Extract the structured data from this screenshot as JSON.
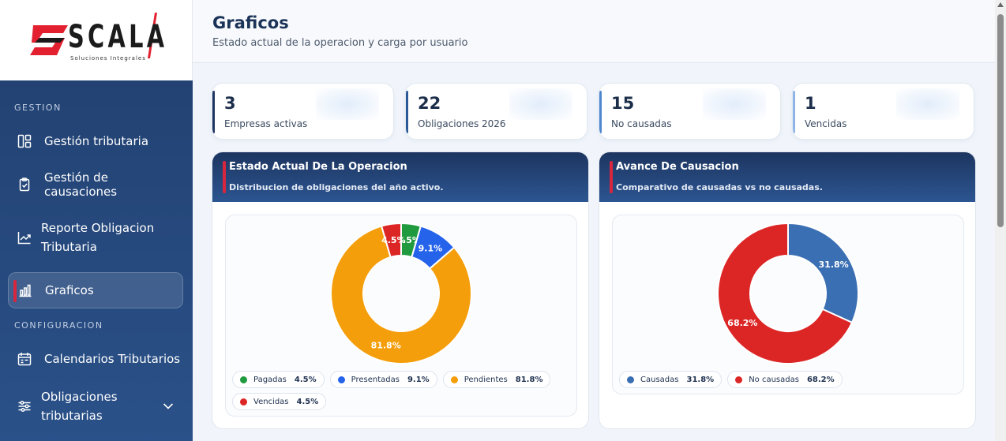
{
  "app": {
    "logo_text": "SCALA",
    "logo_sub": "Soluciones Integrales"
  },
  "sidebar": {
    "sections": [
      {
        "label": "GESTION"
      },
      {
        "label": "CONFIGURACION"
      }
    ],
    "items": [
      {
        "label": "Gestión tributaria",
        "icon": "dashboard-icon"
      },
      {
        "label": "Gestión de causaciones",
        "icon": "clipboard-check-icon"
      },
      {
        "label": "Reporte Obligacion Tributaria",
        "icon": "trend-chart-icon"
      },
      {
        "label": "Graficos",
        "icon": "bar-chart-icon",
        "active": true
      },
      {
        "label": "Calendarios Tributarios",
        "icon": "calendar-icon"
      },
      {
        "label": "Obligaciones tributarias",
        "icon": "sliders-icon",
        "expand_icon": "chevron-down-icon"
      }
    ]
  },
  "header": {
    "title": "Graficos",
    "subtitle": "Estado actual de la operacion y carga por usuario"
  },
  "stats": [
    {
      "value": "3",
      "label": "Empresas activas",
      "color": "#1d3560"
    },
    {
      "value": "22",
      "label": "Obligaciones 2026",
      "color": "#2c5a99"
    },
    {
      "value": "15",
      "label": "No causadas",
      "color": "#4e86cf"
    },
    {
      "value": "1",
      "label": "Vencidas",
      "color": "#8fb5e6"
    }
  ],
  "cards": [
    {
      "title": "Estado Actual De La Operacion",
      "subtitle": "Distribucion de obligaciones del año activo."
    },
    {
      "title": "Avance De Causacion",
      "subtitle": "Comparativo de causadas vs no causadas."
    }
  ],
  "chart_data": [
    {
      "type": "pie",
      "donut": true,
      "slices": [
        {
          "label": "Pagadas",
          "value": 4.5,
          "display": "4.5%",
          "color": "#1f9a3f"
        },
        {
          "label": "Presentadas",
          "value": 9.1,
          "display": "9.1%",
          "color": "#2563eb"
        },
        {
          "label": "Pendientes",
          "value": 81.8,
          "display": "81.8%",
          "color": "#f59e0b"
        },
        {
          "label": "Vencidas",
          "value": 4.5,
          "display": "4.5%",
          "color": "#dc2626"
        }
      ],
      "legend_placement": "bottom"
    },
    {
      "type": "pie",
      "donut": true,
      "slices": [
        {
          "label": "Causadas",
          "value": 31.8,
          "display": "31.8%",
          "color": "#3b6fb3"
        },
        {
          "label": "No causadas",
          "value": 68.2,
          "display": "68.2%",
          "color": "#dc2626"
        }
      ],
      "legend_placement": "bottom"
    }
  ]
}
